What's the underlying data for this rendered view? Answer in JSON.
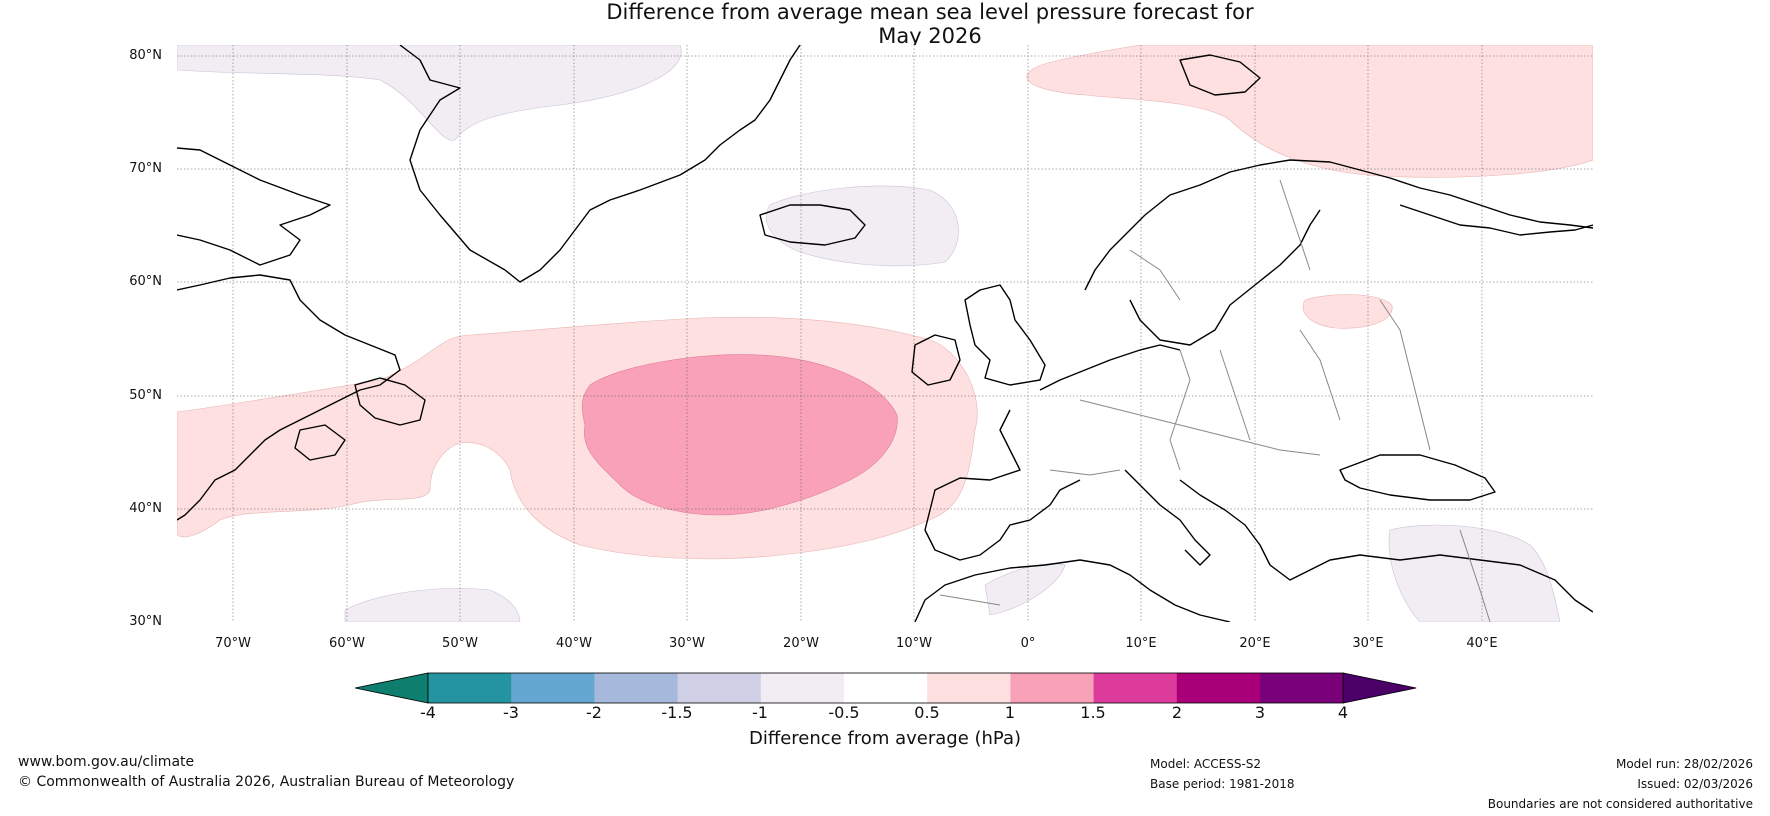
{
  "title_line1": "Difference from average mean sea level pressure forecast for",
  "title_line2": "May 2026",
  "lat_labels": [
    "80°N",
    "70°N",
    "60°N",
    "50°N",
    "40°N",
    "30°N"
  ],
  "lon_labels": [
    "70°W",
    "60°W",
    "50°W",
    "40°W",
    "30°W",
    "20°W",
    "10°W",
    "0°",
    "10°E",
    "20°E",
    "30°E",
    "40°E"
  ],
  "colorbar": {
    "ticks": [
      "-4",
      "-3",
      "-2",
      "-1.5",
      "-1",
      "-0.5",
      "0.5",
      "1",
      "1.5",
      "2",
      "3",
      "4"
    ],
    "colors": [
      "#0e7f6e",
      "#2494a0",
      "#64a8d2",
      "#a6b9dc",
      "#cfd0e6",
      "#f1edf3",
      "#ffffff",
      "#fde0df",
      "#f8a1b9",
      "#dc3b9c",
      "#a90079",
      "#7a007a",
      "#4b0068"
    ],
    "title": "Difference from average (hPa)"
  },
  "footer": {
    "url": "www.bom.gov.au/climate",
    "copyright": "© Commonwealth of Australia 2026, Australian Bureau of Meteorology",
    "model": "Model: ACCESS-S2",
    "base_period": "Base period: 1981-2018",
    "model_run": "Model run: 28/02/2026",
    "issued": "Issued: 02/03/2026",
    "disclaimer": "Boundaries are not considered authoritative"
  }
}
